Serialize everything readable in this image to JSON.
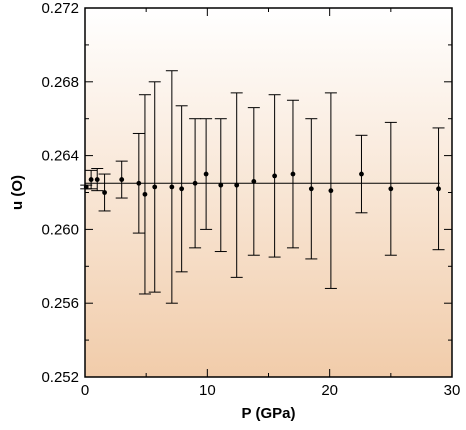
{
  "chart_data": {
    "type": "scatter",
    "title": "",
    "xlabel": "P (GPa)",
    "ylabel": "u (O)",
    "xlim": [
      0,
      30
    ],
    "ylim": [
      0.252,
      0.272
    ],
    "x_ticks": [
      "0",
      "10",
      "20",
      "30"
    ],
    "x_tick_values": [
      0,
      10,
      20,
      30
    ],
    "y_ticks": [
      "0.252",
      "0.256",
      "0.260",
      "0.264",
      "0.268",
      "0.272"
    ],
    "y_tick_values": [
      0.252,
      0.256,
      0.26,
      0.264,
      0.268,
      0.272
    ],
    "grid": false,
    "background_gradient": [
      "#ffffff",
      "#f1ccaa"
    ],
    "series": [
      {
        "points": [
          {
            "x": 0.1,
            "y": 0.2623,
            "err": 0.0001
          },
          {
            "x": 0.5,
            "y": 0.2627,
            "err": 0.0005
          },
          {
            "x": 1.0,
            "y": 0.2627,
            "err": 0.0006
          },
          {
            "x": 1.6,
            "y": 0.262,
            "err": 0.001
          },
          {
            "x": 3.0,
            "y": 0.2627,
            "err": 0.001
          },
          {
            "x": 4.4,
            "y": 0.2625,
            "err": 0.0027
          },
          {
            "x": 4.9,
            "y": 0.2619,
            "err": 0.0054
          },
          {
            "x": 5.7,
            "y": 0.2623,
            "err": 0.0057
          },
          {
            "x": 7.1,
            "y": 0.2623,
            "err": 0.0063
          },
          {
            "x": 7.9,
            "y": 0.2622,
            "err": 0.0045
          },
          {
            "x": 9.0,
            "y": 0.2625,
            "err": 0.0035
          },
          {
            "x": 9.9,
            "y": 0.263,
            "err": 0.003
          },
          {
            "x": 11.1,
            "y": 0.2624,
            "err": 0.0036
          },
          {
            "x": 12.4,
            "y": 0.2624,
            "err": 0.005
          },
          {
            "x": 13.8,
            "y": 0.2626,
            "err": 0.004
          },
          {
            "x": 15.5,
            "y": 0.2629,
            "err": 0.0044
          },
          {
            "x": 17.0,
            "y": 0.263,
            "err": 0.004
          },
          {
            "x": 18.5,
            "y": 0.2622,
            "err": 0.0038
          },
          {
            "x": 20.1,
            "y": 0.2621,
            "err": 0.0053
          },
          {
            "x": 22.6,
            "y": 0.263,
            "err": 0.0021
          },
          {
            "x": 25.0,
            "y": 0.2622,
            "err": 0.0036
          },
          {
            "x": 28.9,
            "y": 0.2622,
            "err": 0.0033
          }
        ]
      }
    ],
    "fit_line": {
      "x": [
        0,
        29
      ],
      "y": [
        0.2625,
        0.2625
      ]
    }
  }
}
